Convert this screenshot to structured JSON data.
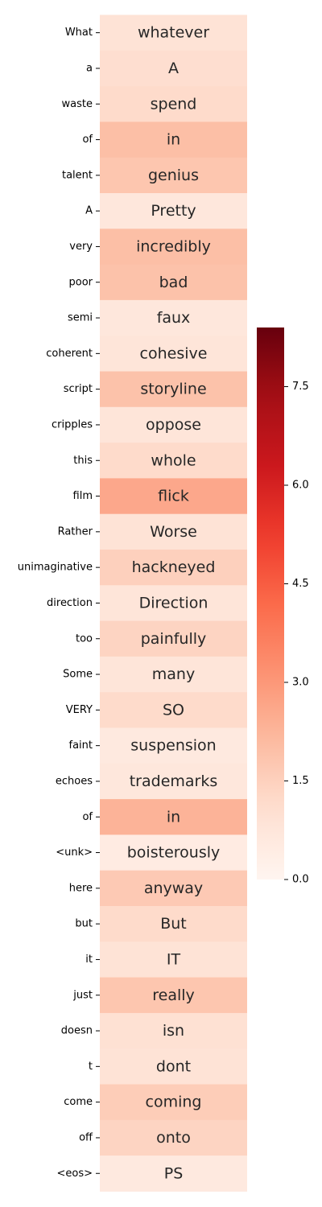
{
  "chart_data": {
    "type": "heatmap",
    "title": "",
    "xlabel": "",
    "ylabel": "",
    "colormap": "Reds",
    "vmin": 0.0,
    "vmax": 8.4,
    "row_labels": [
      "What",
      "a",
      "waste",
      "of",
      "talent",
      "A",
      "very",
      "poor",
      "semi",
      "coherent",
      "script",
      "cripples",
      "this",
      "film",
      "Rather",
      "unimaginative",
      "direction",
      "too",
      "Some",
      "VERY",
      "faint",
      "echoes",
      "of",
      "<unk>",
      "here",
      "but",
      "it",
      "just",
      "doesn",
      "t",
      "come",
      "off",
      "<eos>"
    ],
    "cell_labels": [
      "whatever",
      "A",
      "spend",
      "in",
      "genius",
      "Pretty",
      "incredibly",
      "bad",
      "faux",
      "cohesive",
      "storyline",
      "oppose",
      "whole",
      "flick",
      "Worse",
      "hackneyed",
      "Direction",
      "painfully",
      "many",
      "SO",
      "suspension",
      "trademarks",
      "in",
      "boisterously",
      "anyway",
      "But",
      "IT",
      "really",
      "isn",
      "dont",
      "coming",
      "onto",
      "PS"
    ],
    "values": [
      0.9,
      1.1,
      1.2,
      2.0,
      1.8,
      0.7,
      2.0,
      1.9,
      0.7,
      0.8,
      1.9,
      0.8,
      1.2,
      2.6,
      0.9,
      1.5,
      0.8,
      1.4,
      0.8,
      1.2,
      0.6,
      0.7,
      2.3,
      0.5,
      1.7,
      1.2,
      0.9,
      1.8,
      1.0,
      0.9,
      1.6,
      1.4,
      0.6
    ],
    "colorbar_ticks": [
      0.0,
      1.5,
      3.0,
      4.5,
      6.0,
      7.5
    ],
    "colorbar_tick_labels": [
      "0.0",
      "1.5",
      "3.0",
      "4.5",
      "6.0",
      "7.5"
    ]
  }
}
